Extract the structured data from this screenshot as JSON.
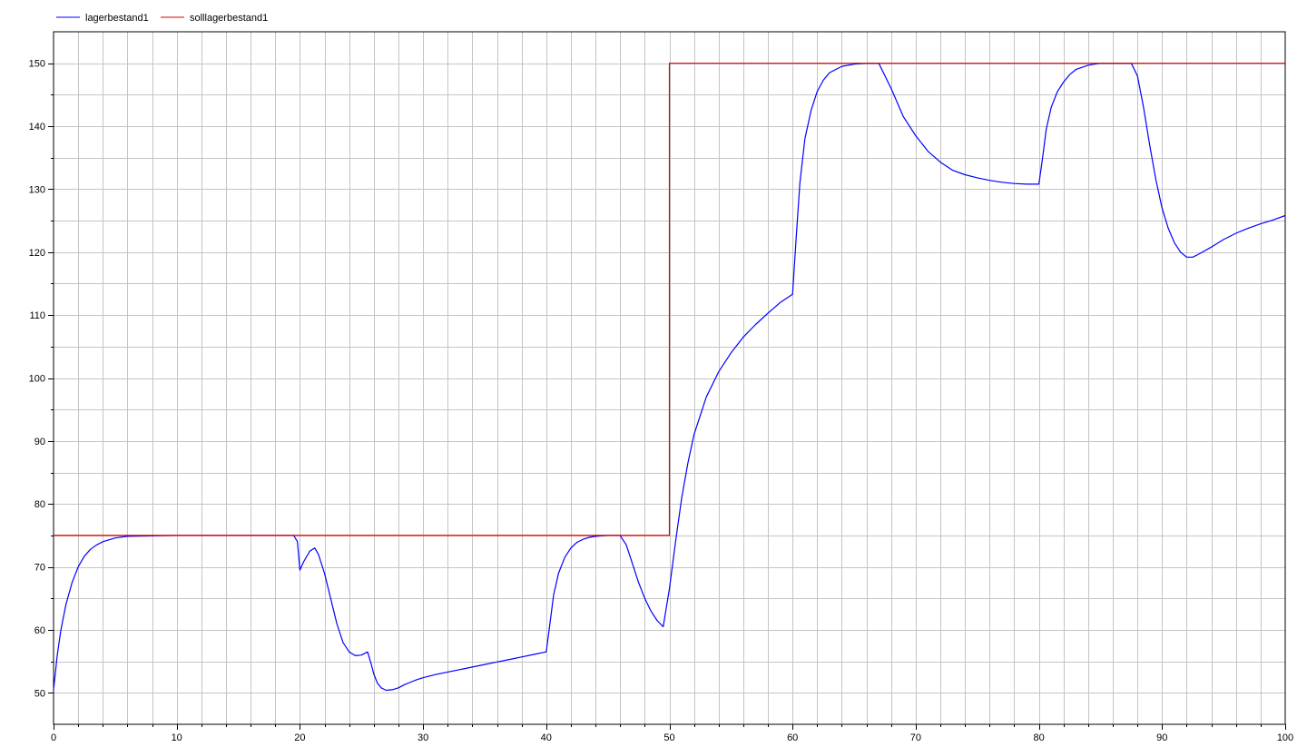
{
  "chart_data": {
    "type": "line",
    "title": "",
    "xlabel": "",
    "ylabel": "",
    "xlim": [
      0,
      100
    ],
    "ylim": [
      45,
      155
    ],
    "x_ticks": [
      0,
      10,
      20,
      30,
      40,
      50,
      60,
      70,
      80,
      90,
      100
    ],
    "y_ticks": [
      50,
      60,
      70,
      80,
      90,
      100,
      110,
      120,
      130,
      140,
      150
    ],
    "grid": true,
    "legend_position": "top-left",
    "series": [
      {
        "name": "lagerbestand1",
        "color": "#0000ff",
        "x": [
          0,
          0.3,
          0.6,
          1,
          1.5,
          2,
          2.5,
          3,
          3.5,
          4,
          5,
          6,
          10,
          15,
          19.5,
          19.8,
          20,
          20.3,
          20.8,
          21.2,
          21.5,
          22,
          22.5,
          23,
          23.5,
          24,
          24.5,
          25,
          25.5,
          25.8,
          26,
          26.3,
          26.6,
          27,
          27.5,
          28,
          28.5,
          29,
          29.5,
          30,
          31,
          32,
          33,
          34,
          35,
          36,
          37,
          38,
          39,
          40,
          40.3,
          40.6,
          41,
          41.5,
          42,
          42.5,
          43,
          43.5,
          44,
          45,
          46,
          46.5,
          47,
          47.5,
          48,
          48.5,
          49,
          49.5,
          50,
          50.5,
          51,
          51.5,
          52,
          53,
          54,
          55,
          56,
          57,
          58,
          59,
          60,
          60.3,
          60.6,
          61,
          61.5,
          62,
          62.5,
          63,
          64,
          65,
          66,
          67,
          68,
          69,
          70,
          71,
          72,
          73,
          74,
          75,
          76,
          77,
          78,
          79,
          80,
          80.3,
          80.6,
          81,
          81.5,
          82,
          82.5,
          83,
          84,
          85,
          86,
          87,
          87.5,
          88,
          88.5,
          89,
          89.5,
          90,
          90.5,
          91,
          91.5,
          92,
          92.5,
          93,
          94,
          95,
          96,
          97,
          98,
          99,
          100
        ],
        "y": [
          50.5,
          56,
          60,
          64,
          67.5,
          70,
          71.7,
          72.8,
          73.5,
          74,
          74.6,
          74.85,
          75,
          75,
          75,
          74,
          69.5,
          70.8,
          72.5,
          73,
          72,
          69,
          65,
          61,
          58,
          56.5,
          55.9,
          56,
          56.5,
          54.5,
          53,
          51.5,
          50.8,
          50.4,
          50.5,
          50.8,
          51.3,
          51.7,
          52.1,
          52.4,
          52.9,
          53.3,
          53.7,
          54.1,
          54.5,
          54.9,
          55.3,
          55.7,
          56.1,
          56.5,
          61,
          65.5,
          69,
          71.5,
          73,
          73.9,
          74.4,
          74.7,
          74.85,
          75,
          75,
          73.5,
          70.5,
          67.5,
          65,
          63,
          61.5,
          60.5,
          66.5,
          74,
          81,
          86.5,
          91,
          97,
          101,
          104,
          106.5,
          108.5,
          110.3,
          112,
          113.3,
          122.5,
          131,
          138,
          142.5,
          145.5,
          147.3,
          148.5,
          149.5,
          149.85,
          150,
          150,
          146,
          141.5,
          138.5,
          136,
          134.3,
          133,
          132.3,
          131.8,
          131.4,
          131.1,
          130.9,
          130.8,
          130.8,
          135,
          139.5,
          143,
          145.5,
          147,
          148.2,
          149,
          149.7,
          150,
          150,
          150,
          150,
          148,
          143,
          137,
          131.5,
          127,
          123.8,
          121.5,
          120,
          119.2,
          119.2,
          119.7,
          120.8,
          122,
          123,
          123.8,
          124.5,
          125.1,
          125.8
        ]
      },
      {
        "name": "solllagerbestand1",
        "color": "#e00000",
        "x": [
          0,
          50,
          50,
          100
        ],
        "y": [
          75,
          75,
          150,
          150
        ]
      }
    ]
  }
}
